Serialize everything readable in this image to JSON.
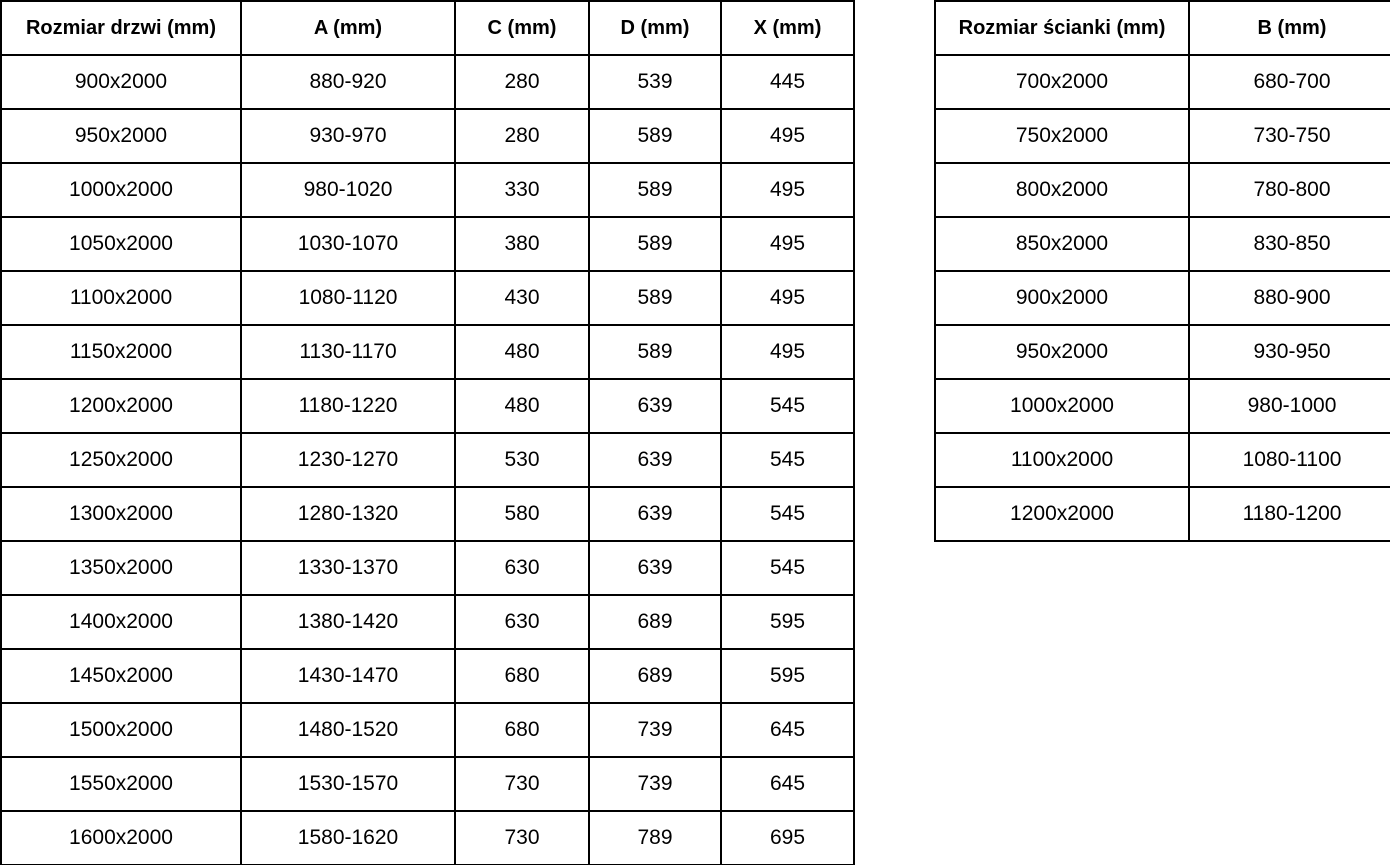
{
  "page": {
    "background_color": "#ffffff",
    "border_color": "#000000",
    "text_color": "#000000"
  },
  "door_table": {
    "headers": [
      "Rozmiar drzwi (mm)",
      "A (mm)",
      "C (mm)",
      "D (mm)",
      "X (mm)"
    ],
    "rows": [
      [
        "900x2000",
        "880-920",
        "280",
        "539",
        "445"
      ],
      [
        "950x2000",
        "930-970",
        "280",
        "589",
        "495"
      ],
      [
        "1000x2000",
        "980-1020",
        "330",
        "589",
        "495"
      ],
      [
        "1050x2000",
        "1030-1070",
        "380",
        "589",
        "495"
      ],
      [
        "1100x2000",
        "1080-1120",
        "430",
        "589",
        "495"
      ],
      [
        "1150x2000",
        "1130-1170",
        "480",
        "589",
        "495"
      ],
      [
        "1200x2000",
        "1180-1220",
        "480",
        "639",
        "545"
      ],
      [
        "1250x2000",
        "1230-1270",
        "530",
        "639",
        "545"
      ],
      [
        "1300x2000",
        "1280-1320",
        "580",
        "639",
        "545"
      ],
      [
        "1350x2000",
        "1330-1370",
        "630",
        "639",
        "545"
      ],
      [
        "1400x2000",
        "1380-1420",
        "630",
        "689",
        "595"
      ],
      [
        "1450x2000",
        "1430-1470",
        "680",
        "689",
        "595"
      ],
      [
        "1500x2000",
        "1480-1520",
        "680",
        "739",
        "645"
      ],
      [
        "1550x2000",
        "1530-1570",
        "730",
        "739",
        "645"
      ],
      [
        "1600x2000",
        "1580-1620",
        "730",
        "789",
        "695"
      ]
    ]
  },
  "wall_table": {
    "headers": [
      "Rozmiar ścianki (mm)",
      "B (mm)"
    ],
    "rows": [
      [
        "700x2000",
        "680-700"
      ],
      [
        "750x2000",
        "730-750"
      ],
      [
        "800x2000",
        "780-800"
      ],
      [
        "850x2000",
        "830-850"
      ],
      [
        "900x2000",
        "880-900"
      ],
      [
        "950x2000",
        "930-950"
      ],
      [
        "1000x2000",
        "980-1000"
      ],
      [
        "1100x2000",
        "1080-1100"
      ],
      [
        "1200x2000",
        "1180-1200"
      ]
    ]
  }
}
